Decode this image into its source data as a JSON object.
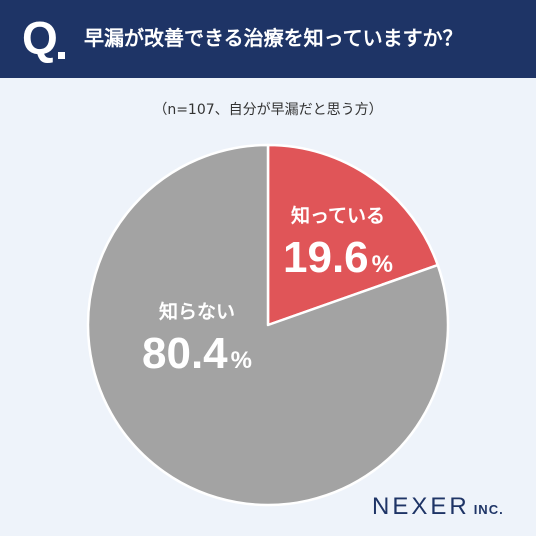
{
  "header": {
    "q_mark": "Q",
    "question": "早漏が改善できる治療を知っていますか？"
  },
  "subtitle": "（n=107、自分が早漏だと思う方）",
  "colors": {
    "header_bg": "#1e3466",
    "known": "#e05558",
    "unknown": "#a3a3a3",
    "background": "#eef3fa"
  },
  "chart_data": {
    "type": "pie",
    "title": "早漏が改善できる治療を知っていますか？",
    "n": 107,
    "slices": [
      {
        "label": "知っている",
        "value": 19.6,
        "unit": "%",
        "color": "#e05558"
      },
      {
        "label": "知らない",
        "value": 80.4,
        "unit": "%",
        "color": "#a3a3a3"
      }
    ]
  },
  "logo": {
    "main": "NEXER",
    "sub": "INC."
  }
}
